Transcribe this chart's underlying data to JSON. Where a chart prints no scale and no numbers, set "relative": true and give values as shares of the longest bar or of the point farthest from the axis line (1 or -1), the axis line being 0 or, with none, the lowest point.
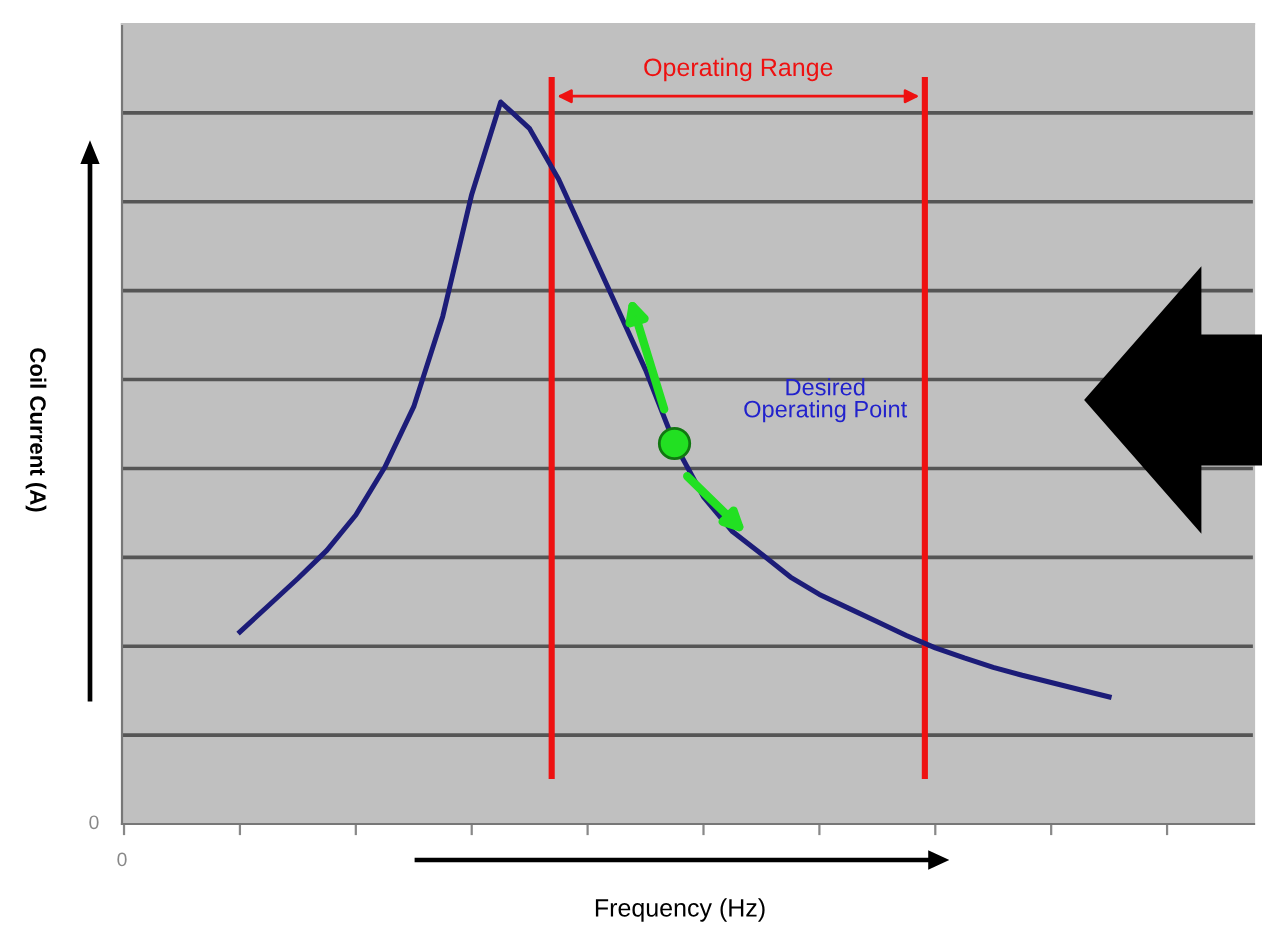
{
  "chart_data": {
    "type": "line",
    "relative": true,
    "xlabel": "Frequency (Hz)",
    "categories": [
      null,
      null,
      null,
      null,
      null,
      null,
      null,
      null,
      null,
      null,
      null,
      null,
      null,
      null,
      null,
      null,
      null,
      null,
      null,
      null,
      null,
      null,
      null,
      null,
      null,
      null,
      null,
      null,
      null,
      null,
      null
    ],
    "grid": "y",
    "marker": "none",
    "line_style": "solid",
    "series": [
      {
        "color": "#1c1c78",
        "values": [
          0.266,
          0.303,
          0.34,
          0.379,
          0.428,
          0.494,
          0.578,
          0.703,
          0.872,
          1.0,
          0.963,
          0.893,
          0.805,
          0.717,
          0.629,
          0.527,
          0.453,
          0.405,
          0.374,
          0.342,
          0.318,
          0.299,
          0.28,
          0.261,
          0.244,
          0.23,
          0.217,
          0.206,
          0.196,
          0.186,
          0.176
        ]
      }
    ],
    "annotations": [
      "Operating Range",
      "Desired Operating Point",
      "0",
      "0",
      "Coil Current (A)"
    ]
  }
}
